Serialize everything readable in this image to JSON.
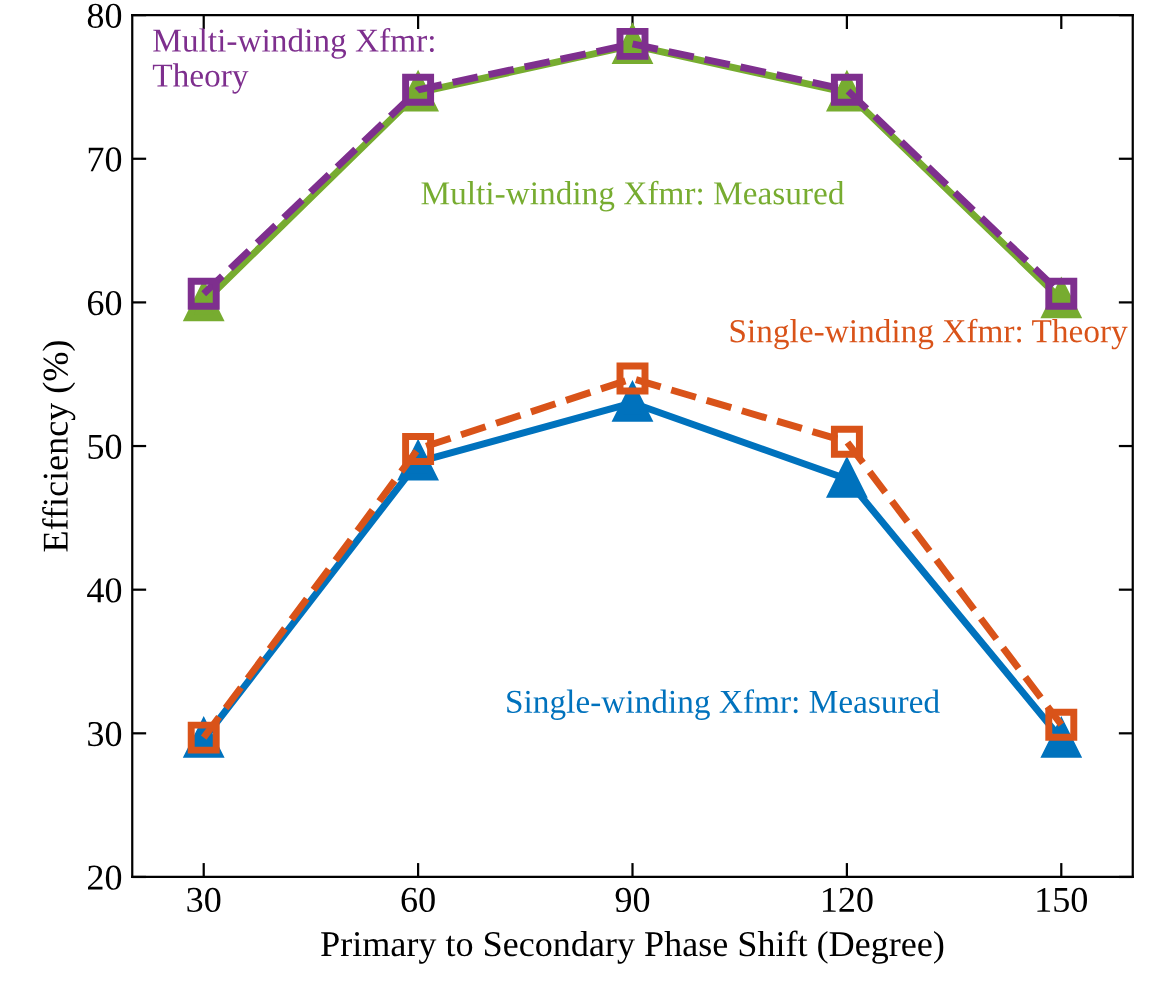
{
  "chart_data": {
    "type": "line",
    "xlabel": "Primary to Secondary Phase Shift (Degree)",
    "ylabel": "Efficiency (%)",
    "x": [
      30,
      60,
      90,
      120,
      150
    ],
    "xlim": [
      20,
      160
    ],
    "xticks": [
      30,
      60,
      90,
      120,
      150
    ],
    "ylim": [
      20,
      80
    ],
    "yticks": [
      20,
      30,
      40,
      50,
      60,
      70,
      80
    ],
    "grid": false,
    "legend": false,
    "series": [
      {
        "name": "Multi-winding Xfmr: Measured",
        "color": "#77ac30",
        "values": [
          60,
          74.6,
          77.9,
          74.6,
          60.2
        ],
        "marker": "triangle",
        "line_style": "solid"
      },
      {
        "name": "Multi-winding Xfmr:\nTheory",
        "color": "#7e2f8e",
        "values": [
          60.6,
          74.8,
          78,
          74.8,
          60.6
        ],
        "marker": "square",
        "line_style": "dashed"
      },
      {
        "name": "Single-winding Xfmr: Measured",
        "color": "#0072bd",
        "values": [
          29.6,
          48.9,
          53,
          47.7,
          29.6
        ],
        "marker": "triangle",
        "line_style": "solid"
      },
      {
        "name": "Single-winding Xfmr: Theory",
        "color": "#d95319",
        "values": [
          29.7,
          49.8,
          54.7,
          50.3,
          30.6
        ],
        "marker": "square",
        "line_style": "dashed"
      }
    ]
  }
}
